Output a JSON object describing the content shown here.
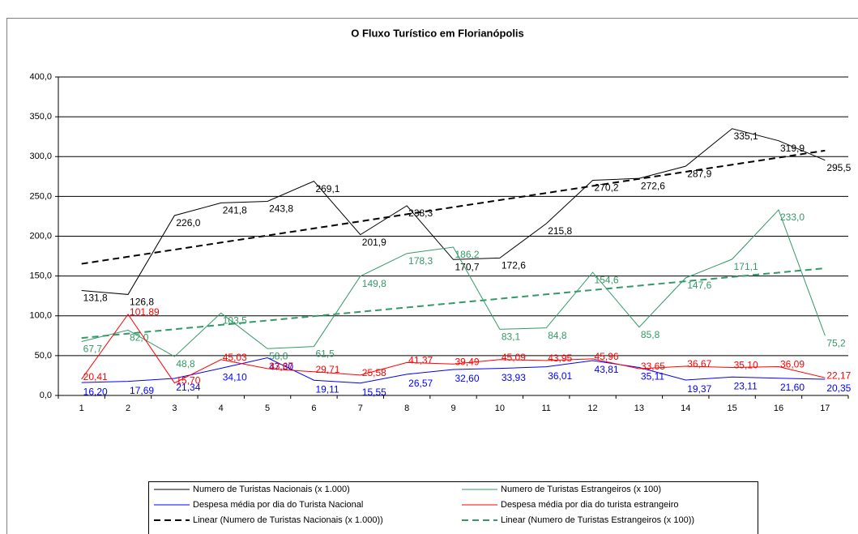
{
  "chart_data": {
    "type": "line",
    "title": "O Fluxo Turístico em Florianópolis",
    "categories": [
      "1",
      "2",
      "3",
      "4",
      "5",
      "6",
      "7",
      "8",
      "9",
      "10",
      "11",
      "12",
      "13",
      "14",
      "15",
      "16",
      "17"
    ],
    "ylim": [
      0,
      400
    ],
    "yticks": [
      {
        "value": 0,
        "label": "0,0"
      },
      {
        "value": 50,
        "label": "50,0"
      },
      {
        "value": 100,
        "label": "100,0"
      },
      {
        "value": 150,
        "label": "150,0"
      },
      {
        "value": 200,
        "label": "200,0"
      },
      {
        "value": 250,
        "label": "250,0"
      },
      {
        "value": 300,
        "label": "300,0"
      },
      {
        "value": 350,
        "label": "350,0"
      },
      {
        "value": 400,
        "label": "400,0"
      }
    ],
    "grid": true,
    "series": [
      {
        "name": "Numero de Turistas Nacionais (x 1.000)",
        "color": "#000000",
        "values": [
          131.8,
          126.8,
          226.0,
          241.8,
          243.8,
          269.1,
          201.9,
          238.3,
          170.7,
          172.6,
          215.8,
          270.2,
          272.6,
          287.9,
          335.1,
          319.9,
          295.5
        ],
        "value_labels": [
          "131,8",
          "126,8",
          "226,0",
          "241,8",
          "243,8",
          "269,1",
          "201,9",
          "238,3",
          "170,7",
          "172,6",
          "215,8",
          "270,2",
          "272,6",
          "287,9",
          "335,1",
          "319,9",
          "295,5"
        ],
        "trendline": {
          "name": "Linear (Numero de Turistas Nacionais (x 1.000))",
          "color": "#000000"
        }
      },
      {
        "name": "Numero de Turistas Estrangeiros (x 100)",
        "color": "#339966",
        "values": [
          67.7,
          82.0,
          48.8,
          103.5,
          58.8,
          61.5,
          149.8,
          178.3,
          186.2,
          83.1,
          84.8,
          154.6,
          85.8,
          147.6,
          171.1,
          233.0,
          75.2
        ],
        "value_labels": [
          "67,7",
          "82,0",
          "48,8",
          "103,5",
          "58,8",
          "61,5",
          "149,8",
          "178,3",
          "186,2",
          "83,1",
          "84,8",
          "154,6",
          "85,8",
          "147,6",
          "171,1",
          "233,0",
          "75,2"
        ],
        "trendline": {
          "name": "Linear (Numero de Turistas Estrangeiros (x 100))",
          "color": "#339966"
        }
      },
      {
        "name": "Despesa média por dia do Turista Nacional",
        "color": "#0000ff",
        "values": [
          16.2,
          17.69,
          21.34,
          34.1,
          47.3,
          19.11,
          15.55,
          26.57,
          32.6,
          33.93,
          36.01,
          43.81,
          35.11,
          19.37,
          23.11,
          21.6,
          20.35
        ],
        "value_labels": [
          "16,20",
          "17,69",
          "21,34",
          "34,10",
          "47,30",
          "19,11",
          "15,55",
          "26,57",
          "32,60",
          "33,93",
          "36,01",
          "43,81",
          "35,11",
          "19,37",
          "23,11",
          "21,60",
          "20,35"
        ]
      },
      {
        "name": "Despesa média por dia do turista estrangeiro",
        "color": "#ff0000",
        "values": [
          20.41,
          101.89,
          15.7,
          45.03,
          33.67,
          29.71,
          25.58,
          41.37,
          39.49,
          45.09,
          43.95,
          45.96,
          33.65,
          36.67,
          35.1,
          36.09,
          22.17
        ],
        "value_labels": [
          "20,41",
          "101,89",
          "15,70",
          "45,03",
          "33,67",
          "29,71",
          "25,58",
          "41,37",
          "39,49",
          "45,09",
          "43,95",
          "45,96",
          "33,65",
          "36,67",
          "35,10",
          "36,09",
          "22,17"
        ]
      }
    ]
  }
}
